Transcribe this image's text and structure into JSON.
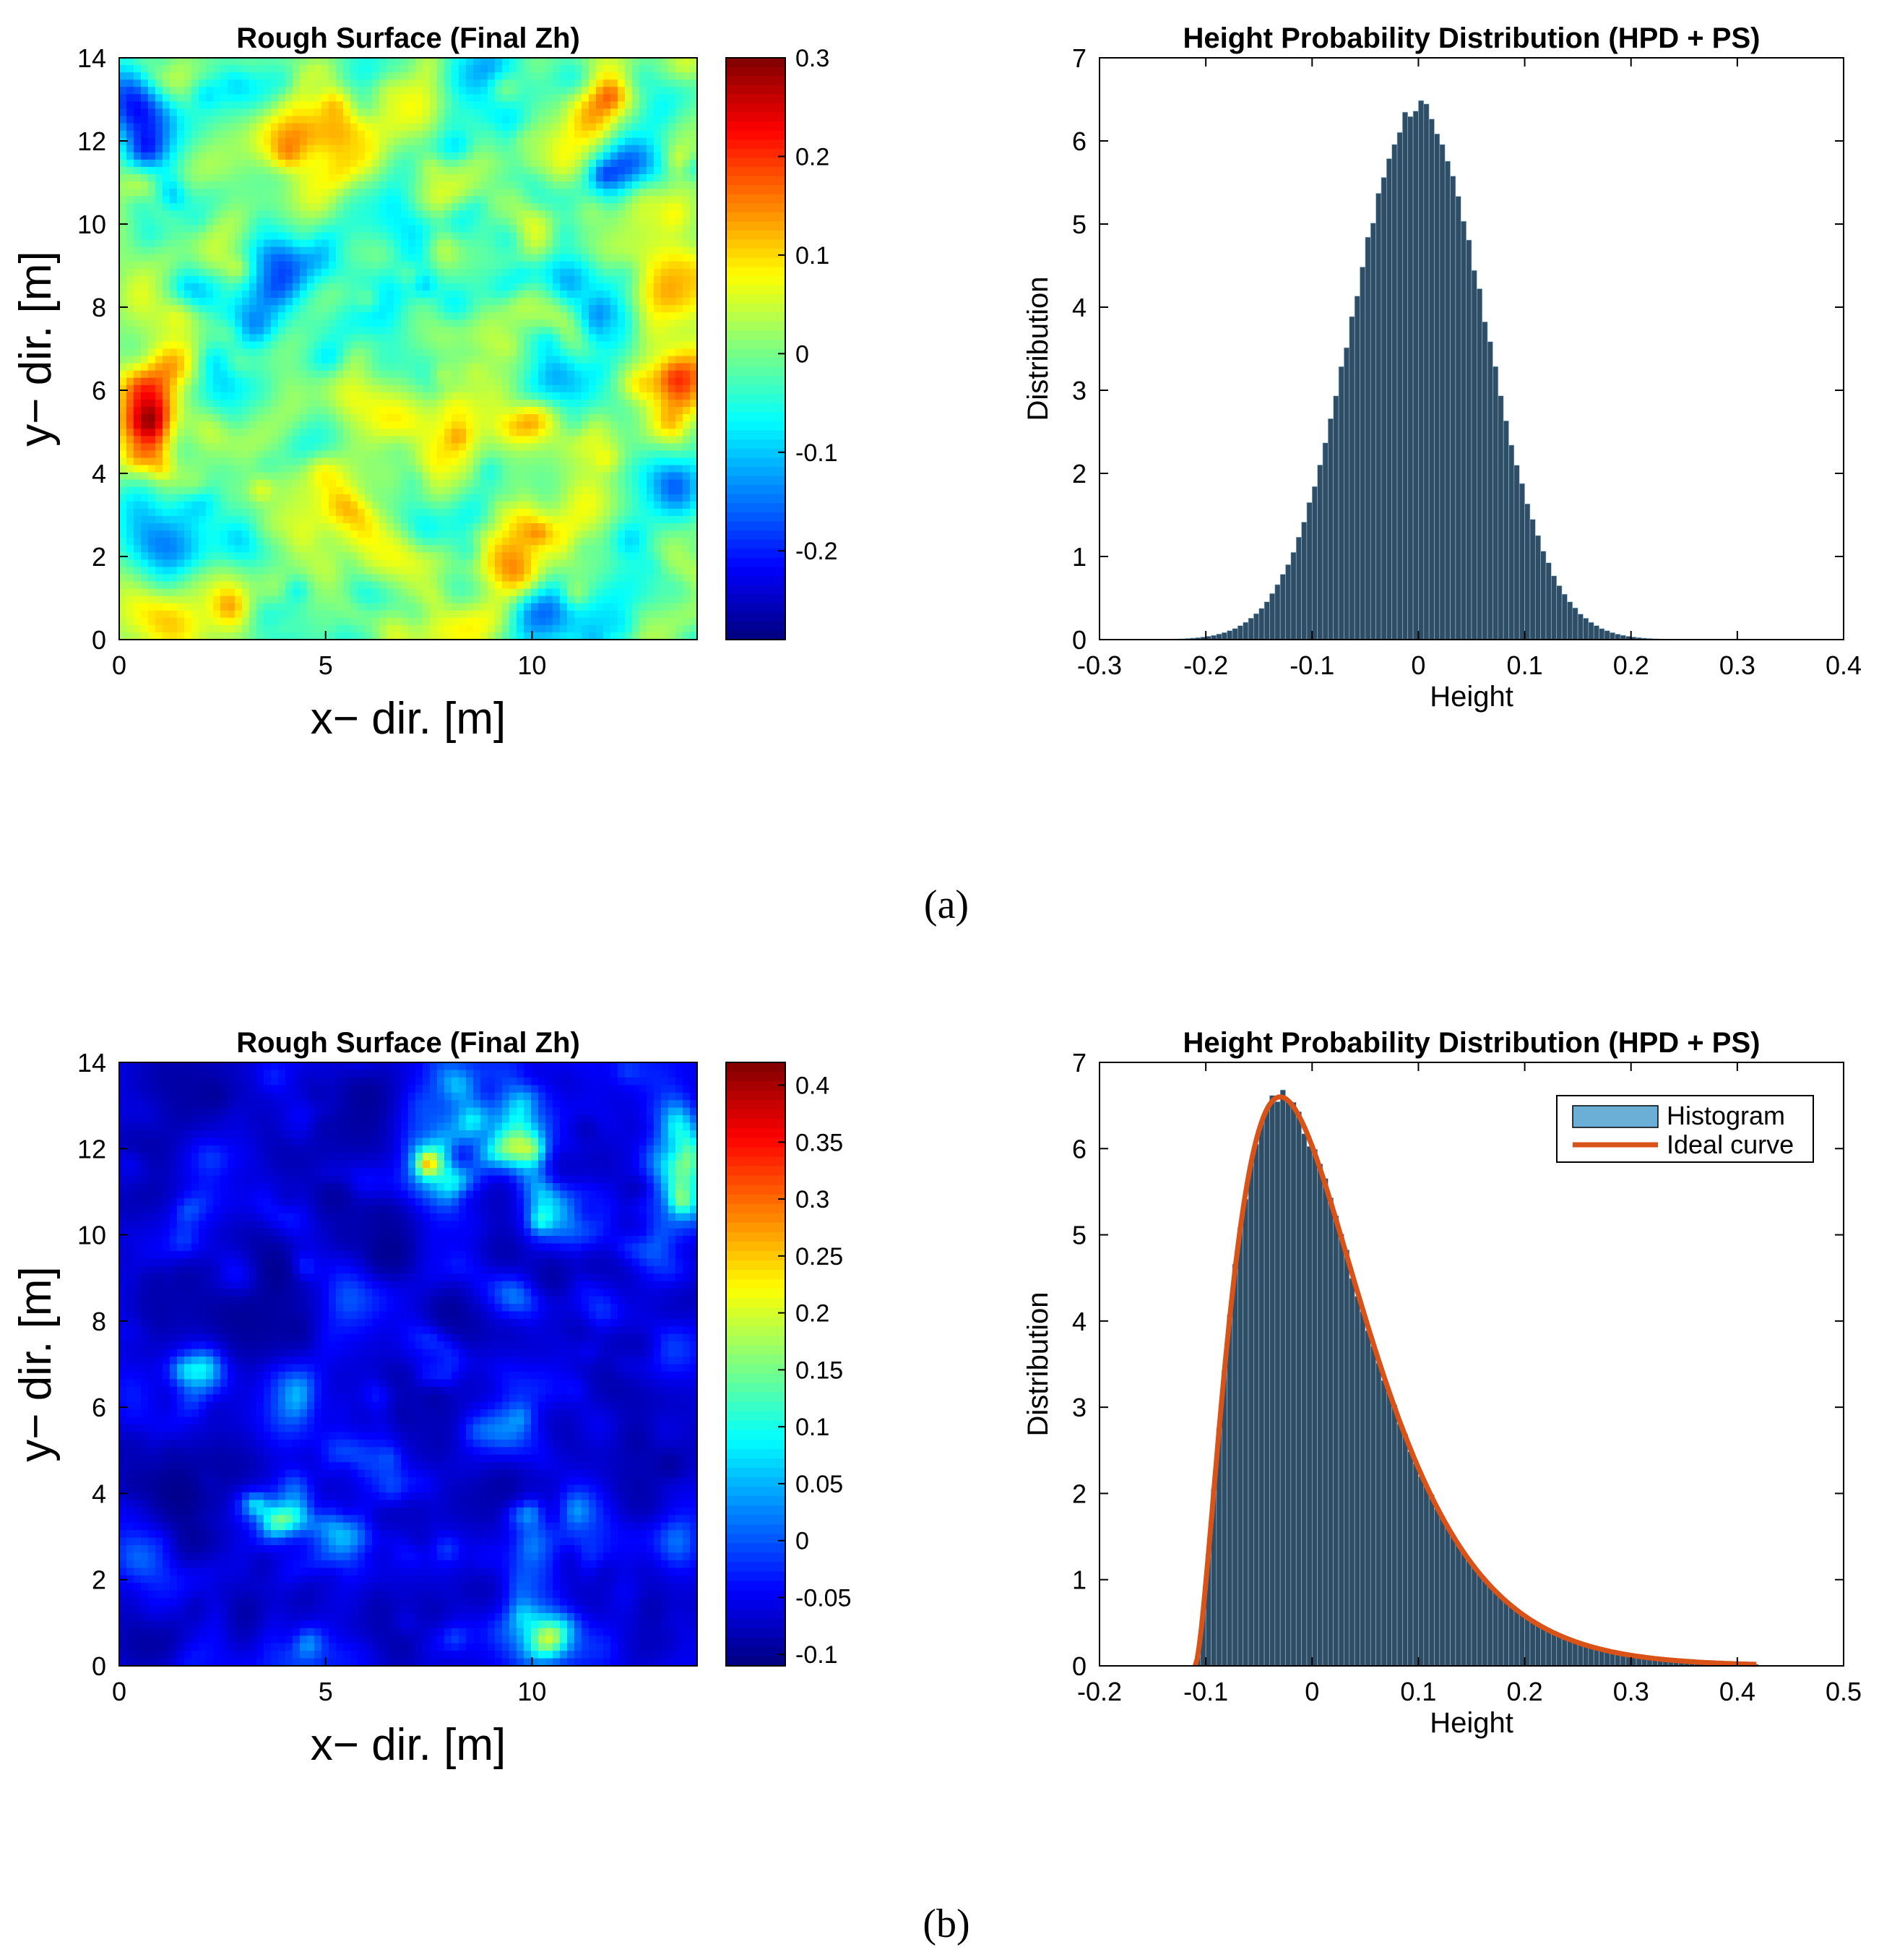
{
  "chart_data": [
    {
      "panel": "a",
      "type": "heatmap",
      "title": "Rough Surface (Final Zh)",
      "xlabel": "x− dir. [m]",
      "ylabel": "y− dir. [m]",
      "xlim": [
        0,
        14
      ],
      "ylim": [
        0,
        14
      ],
      "xticks": [
        0,
        5,
        10
      ],
      "yticks": [
        0,
        2,
        4,
        6,
        8,
        10,
        12,
        14
      ],
      "colorbar": {
        "min": -0.29,
        "max": 0.3,
        "ticks": [
          0.3,
          0.2,
          0.1,
          0,
          -0.1,
          -0.2
        ]
      },
      "colormap": "jet",
      "field_stats": {
        "mean": 0,
        "std": 0.062
      }
    },
    {
      "panel": "a",
      "type": "bar",
      "title": "Height Probability Distribution (HPD + PS)",
      "xlabel": "Height",
      "ylabel": "Distribution",
      "xlim": [
        -0.3,
        0.4
      ],
      "ylim": [
        0,
        7
      ],
      "xticks": [
        -0.3,
        -0.2,
        -0.1,
        0,
        0.1,
        0.2,
        0.3,
        0.4
      ],
      "yticks": [
        0,
        1,
        2,
        3,
        4,
        5,
        6,
        7
      ],
      "bar_color": "#2f4e66",
      "distribution": {
        "kind": "normal",
        "mean": 0.0,
        "std": 0.062,
        "peak": 6.42,
        "bin_width": 0.005,
        "range": [
          -0.285,
          0.265
        ]
      },
      "legend": null
    },
    {
      "panel": "b",
      "type": "heatmap",
      "title": "Rough Surface (Final Zh)",
      "xlabel": "x− dir. [m]",
      "ylabel": "y− dir. [m]",
      "xlim": [
        0,
        14
      ],
      "ylim": [
        0,
        14
      ],
      "xticks": [
        0,
        5,
        10
      ],
      "yticks": [
        0,
        2,
        4,
        6,
        8,
        10,
        12,
        14
      ],
      "colorbar": {
        "min": -0.11,
        "max": 0.42,
        "ticks": [
          0.4,
          0.35,
          0.3,
          0.25,
          0.2,
          0.15,
          0.1,
          0.05,
          0,
          -0.05,
          -0.1
        ]
      },
      "colormap": "jet",
      "field_stats": {
        "shift": -0.11,
        "scale": 0.075,
        "shape": "gamma-like, right skewed"
      }
    },
    {
      "panel": "b",
      "type": "bar",
      "title": "Height Probability Distribution (HPD + PS)",
      "xlabel": "Height",
      "ylabel": "Distribution",
      "xlim": [
        -0.2,
        0.5
      ],
      "ylim": [
        0,
        7
      ],
      "xticks": [
        -0.2,
        -0.1,
        0,
        0.1,
        0.2,
        0.3,
        0.4,
        0.5
      ],
      "yticks": [
        0,
        1,
        2,
        3,
        4,
        5,
        6,
        7
      ],
      "bar_color": "#2f4e66",
      "distribution": {
        "kind": "gamma",
        "shift": -0.11,
        "k": 2.6,
        "theta": 0.05,
        "peak": 6.6,
        "bin_width": 0.005,
        "range": [
          -0.11,
          0.42
        ]
      },
      "curve": {
        "name": "Ideal curve",
        "color": "#d95319",
        "range": [
          -0.11,
          0.42
        ]
      },
      "legend": {
        "position": "top-right",
        "entries": [
          "Histogram",
          "Ideal curve"
        ],
        "colors": [
          "#6baed6",
          "#d95319"
        ]
      }
    }
  ],
  "captions": {
    "a": "(a)",
    "b": "(b)"
  }
}
